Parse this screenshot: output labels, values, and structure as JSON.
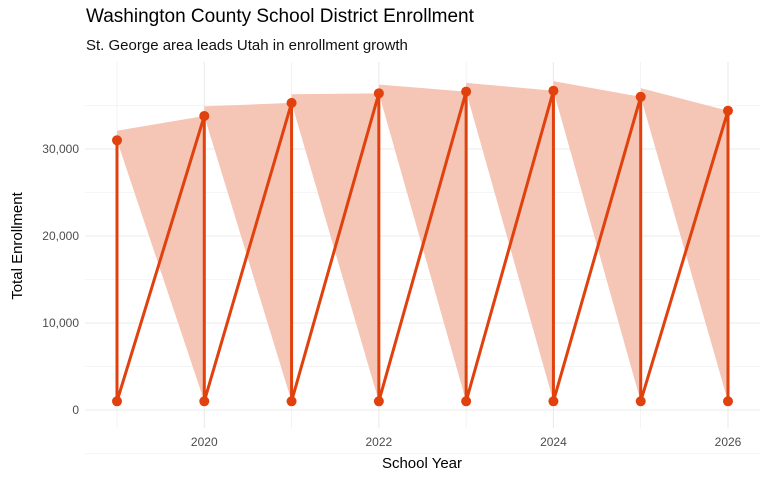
{
  "chart_data": {
    "type": "line",
    "title": "Washington County School District Enrollment",
    "subtitle": "St. George area leads Utah in enrollment growth",
    "xlabel": "School Year",
    "ylabel": "Total Enrollment",
    "xlim": [
      2018.6,
      2026.4
    ],
    "ylim": [
      -2000,
      39000
    ],
    "x_ticks": [
      2020,
      2022,
      2024,
      2026
    ],
    "x_tick_labels": [
      "2020",
      "2022",
      "2024",
      "2026"
    ],
    "y_ticks": [
      0,
      10000,
      20000,
      30000
    ],
    "y_tick_labels": [
      "0",
      "10,000",
      "20,000",
      "30,000"
    ],
    "grid": true,
    "x": [
      2019,
      2020,
      2021,
      2022,
      2023,
      2024,
      2025,
      2026
    ],
    "series": [
      {
        "values_top": [
          31000,
          33800,
          35300,
          36400,
          36600,
          36700,
          36000,
          34400
        ],
        "values_bottom": [
          1000,
          1000,
          1000,
          1000,
          1000,
          1000,
          1000,
          1000
        ]
      }
    ],
    "ribbon_upper": [
      32100,
      34900,
      36300,
      37400,
      37600,
      37800,
      37000,
      35400
    ],
    "colors": {
      "line": "#E0410D",
      "ribbon": "#F5C5B5",
      "grid": "#EBEBEB"
    }
  }
}
